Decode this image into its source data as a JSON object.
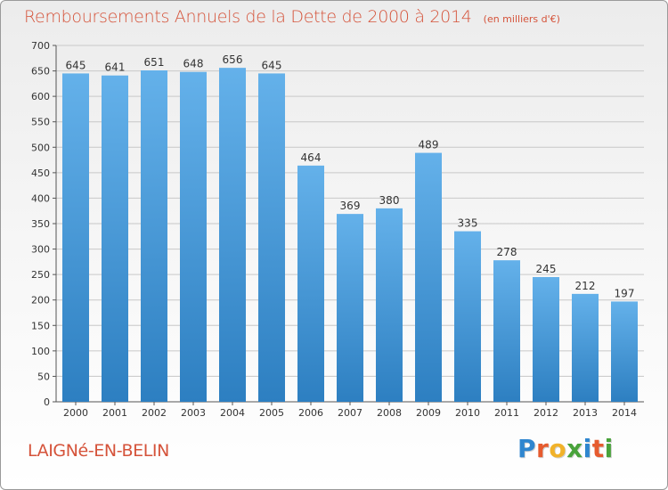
{
  "header": {
    "title": "Remboursements Annuels de la Dette de 2000 à 2014",
    "subtitle": "(en milliers d'€)"
  },
  "footer": {
    "commune": "LAIGNé-EN-BELIN",
    "logo_letters": [
      "P",
      "r",
      "o",
      "x",
      "i",
      "t",
      "i"
    ]
  },
  "colors": {
    "title": "#d5533a",
    "bar_top": "#64b1ea",
    "bar_bottom": "#2d7fc1"
  },
  "chart_data": {
    "type": "bar",
    "title": "Remboursements Annuels de la Dette de 2000 à 2014",
    "categories": [
      "2000",
      "2001",
      "2002",
      "2003",
      "2004",
      "2005",
      "2006",
      "2007",
      "2008",
      "2009",
      "2010",
      "2011",
      "2012",
      "2013",
      "2014"
    ],
    "values": [
      645,
      641,
      651,
      648,
      656,
      645,
      464,
      369,
      380,
      489,
      335,
      278,
      245,
      212,
      197
    ],
    "ylim": [
      0,
      700
    ],
    "yticks": [
      0,
      50,
      100,
      150,
      200,
      250,
      300,
      350,
      400,
      450,
      500,
      550,
      600,
      650,
      700
    ],
    "xlabel": "",
    "ylabel": "",
    "grid": true
  }
}
